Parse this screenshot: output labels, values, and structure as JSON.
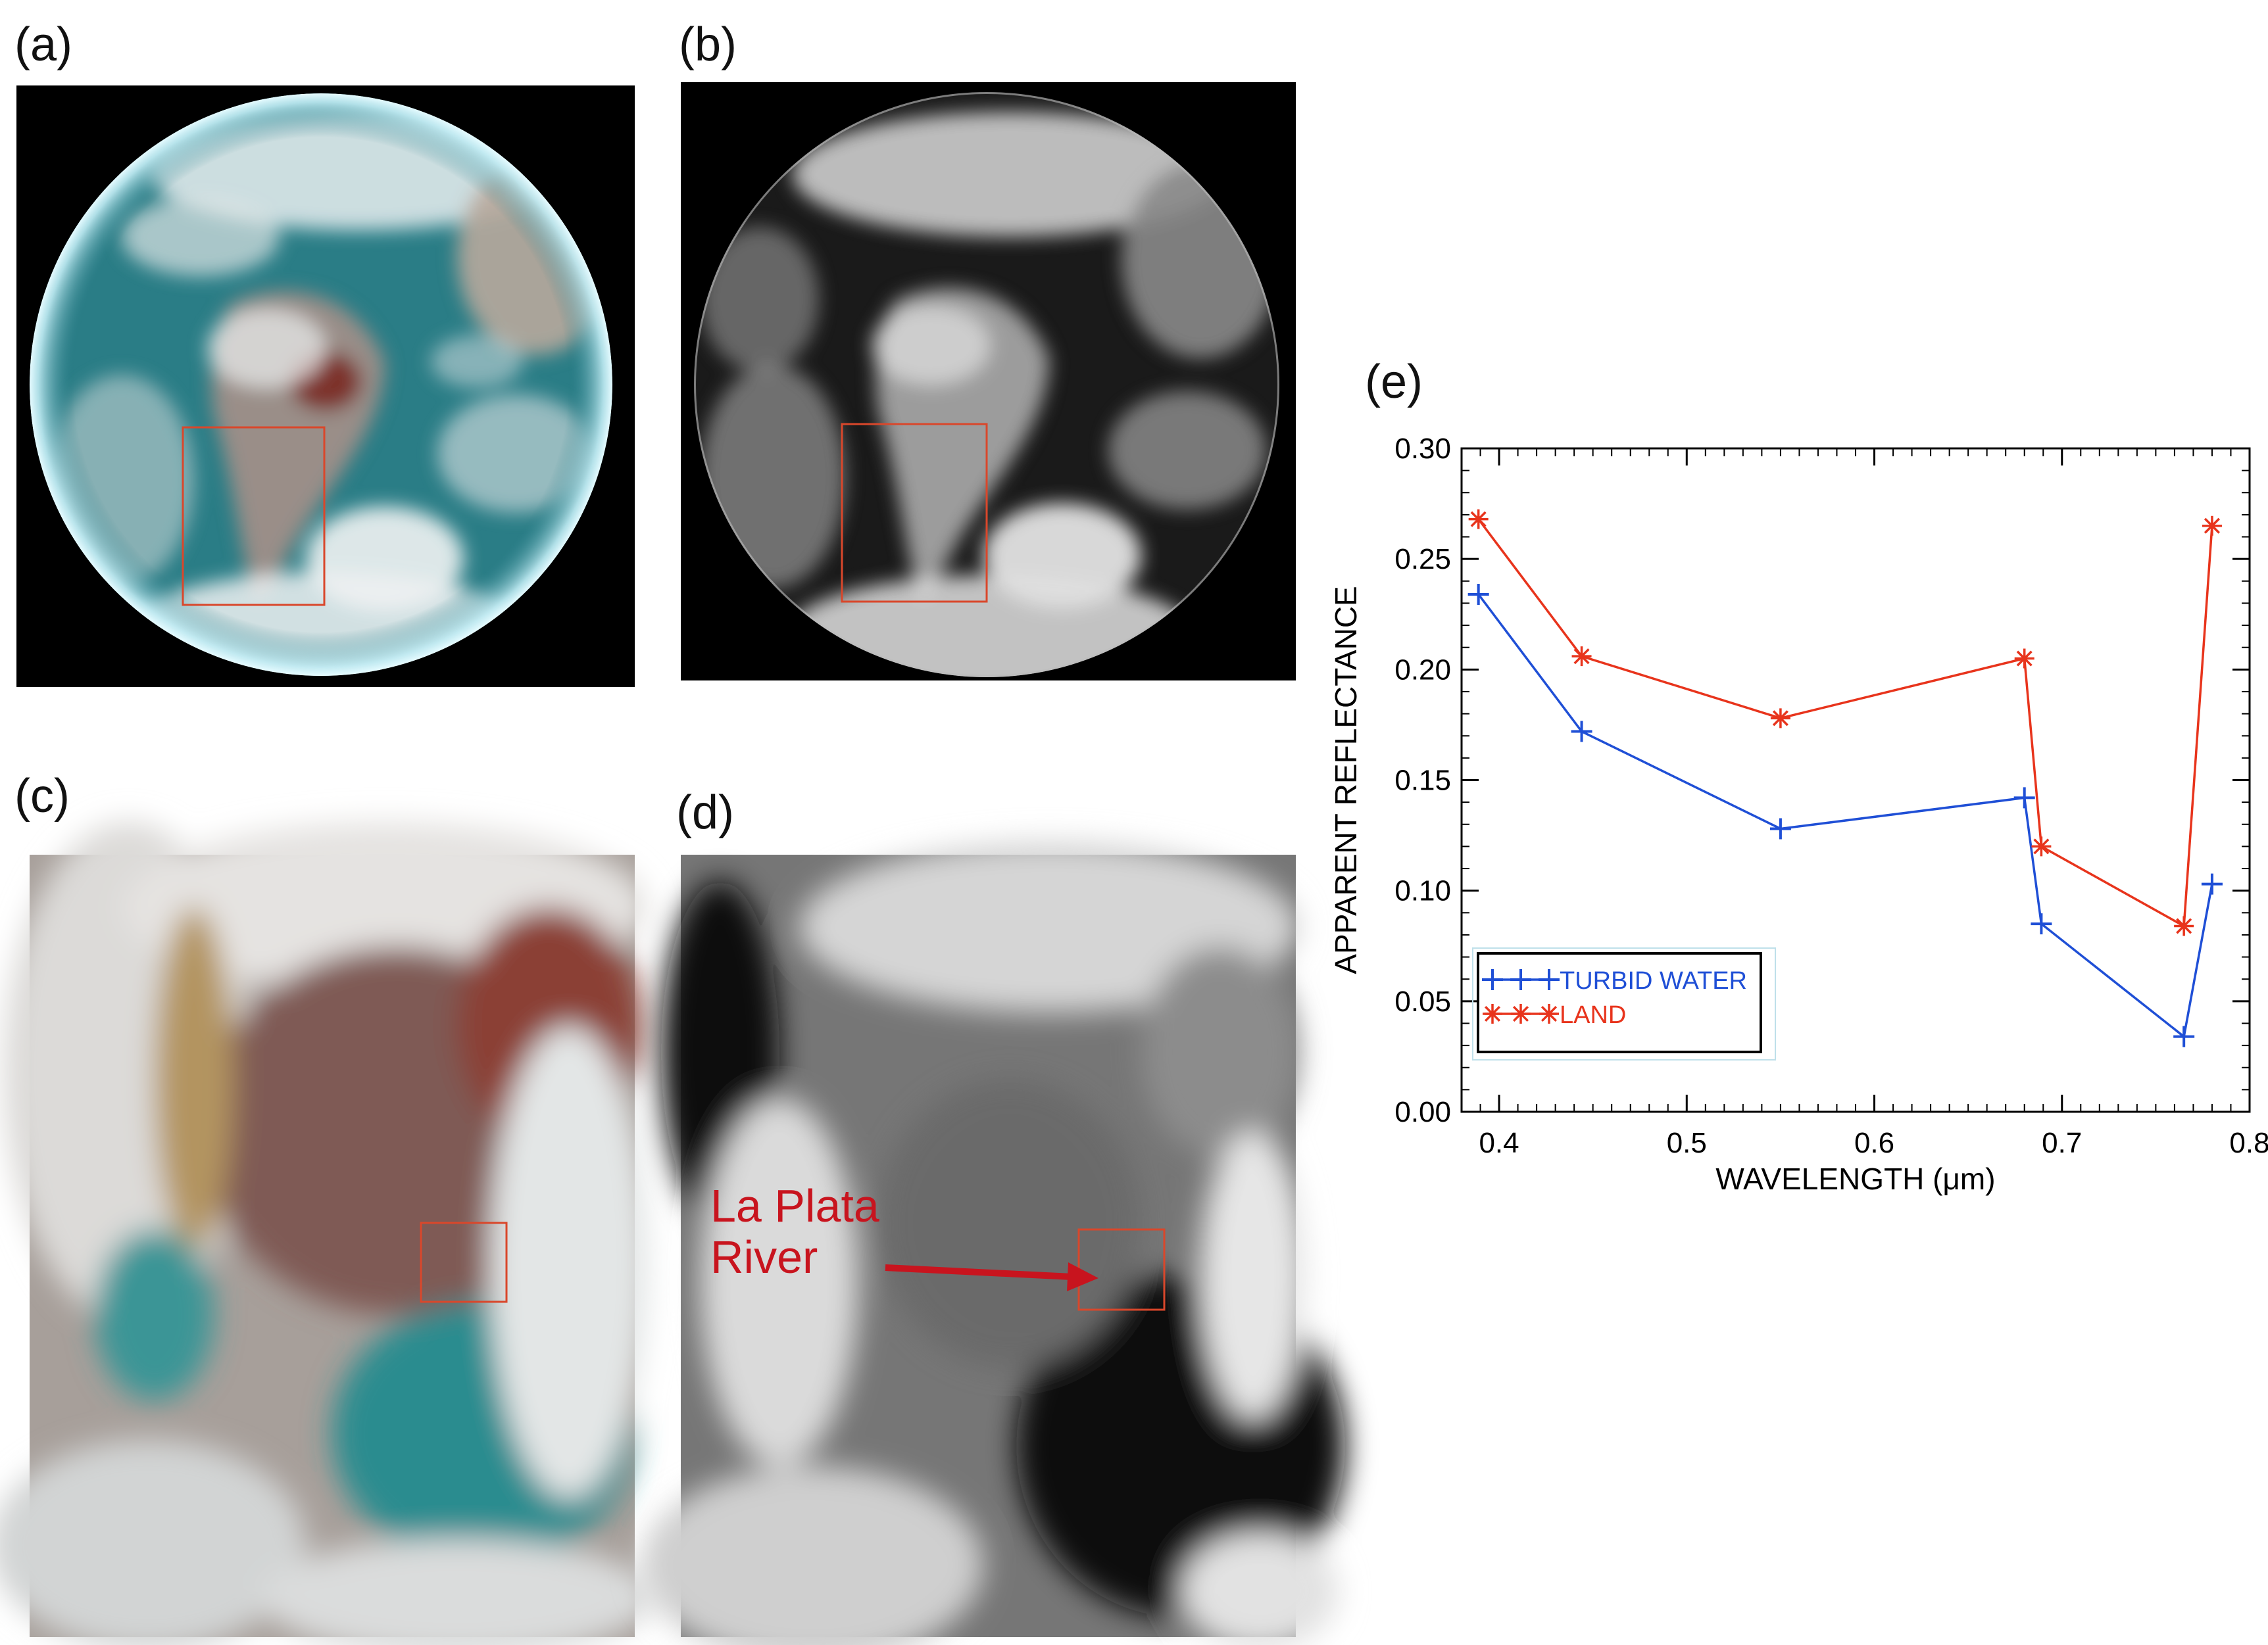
{
  "panels": {
    "a": {
      "label": "(a)"
    },
    "b": {
      "label": "(b)"
    },
    "c": {
      "label": "(c)"
    },
    "d": {
      "label": "(d)",
      "annotation": [
        "La Plata",
        "River"
      ]
    },
    "e": {
      "label": "(e)"
    }
  },
  "colors": {
    "highlight_box": "#d9472b",
    "annotation": "#c8141e",
    "turbid_water": "#1f4fd6",
    "land": "#e8341c"
  },
  "chart_data": {
    "type": "line",
    "xlabel": "WAVELENGTH (μm)",
    "ylabel": "APPARENT REFLECTANCE",
    "xlim": [
      0.38,
      0.8
    ],
    "ylim": [
      0.0,
      0.3
    ],
    "xticks": [
      "0.4",
      "0.5",
      "0.6",
      "0.7",
      "0.8"
    ],
    "yticks": [
      "0.00",
      "0.05",
      "0.10",
      "0.15",
      "0.20",
      "0.25",
      "0.30"
    ],
    "grid": false,
    "legend_position": "bottom-left",
    "series": [
      {
        "name": "TURBID WATER",
        "marker": "plus",
        "color": "#1f4fd6",
        "x": [
          0.389,
          0.444,
          0.55,
          0.68,
          0.689,
          0.765,
          0.78
        ],
        "y": [
          0.234,
          0.172,
          0.128,
          0.142,
          0.085,
          0.034,
          0.103
        ]
      },
      {
        "name": "LAND",
        "marker": "star",
        "color": "#e8341c",
        "x": [
          0.389,
          0.444,
          0.55,
          0.68,
          0.689,
          0.765,
          0.78
        ],
        "y": [
          0.268,
          0.206,
          0.178,
          0.205,
          0.12,
          0.084,
          0.265
        ]
      }
    ]
  }
}
